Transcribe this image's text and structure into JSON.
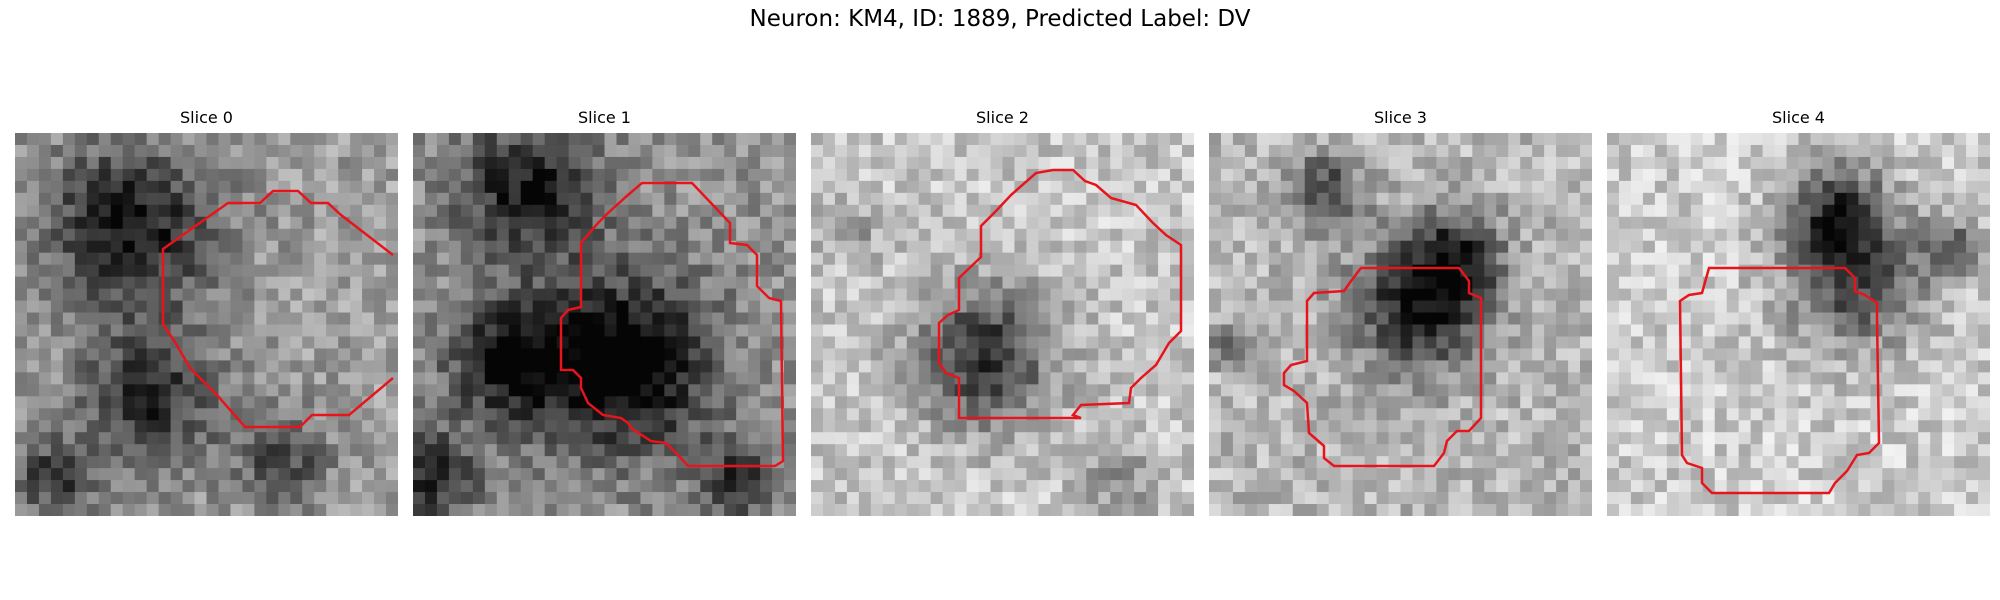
{
  "figure": {
    "title": "Neuron: KM4, ID: 1889, Predicted Label: DV"
  },
  "contour_color": "#e8141c",
  "panels": [
    {
      "title": "Slice 0"
    },
    {
      "title": "Slice 1"
    },
    {
      "title": "Slice 2"
    },
    {
      "title": "Slice 3"
    },
    {
      "title": "Slice 4"
    }
  ]
}
